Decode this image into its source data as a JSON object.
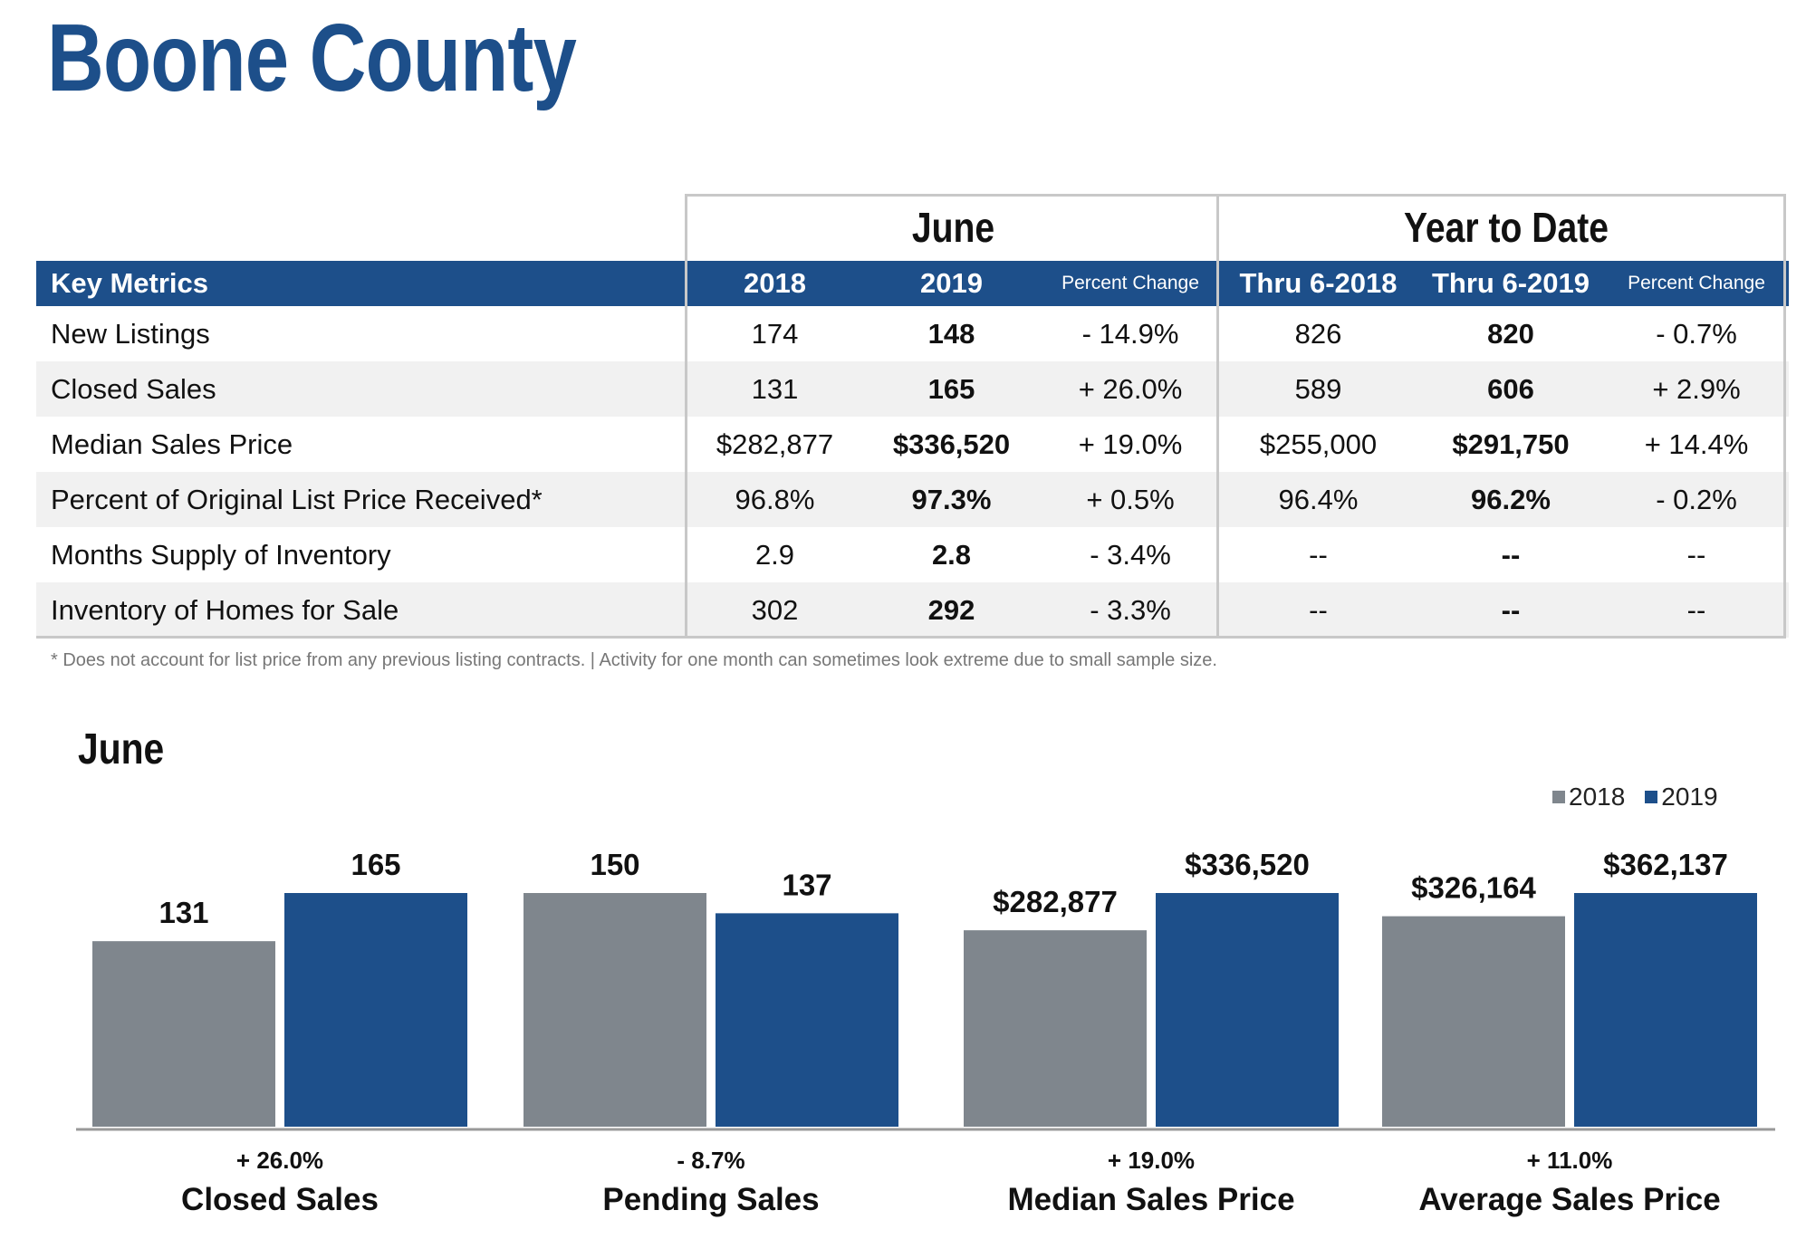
{
  "page_title": "Boone County",
  "table": {
    "group_headers": [
      "June",
      "Year to Date"
    ],
    "columns": [
      "Key Metrics",
      "2018",
      "2019",
      "Percent Change",
      "Thru 6-2018",
      "Thru 6-2019",
      "Percent Change"
    ],
    "rows": [
      [
        "New Listings",
        "174",
        "148",
        "- 14.9%",
        "826",
        "820",
        "- 0.7%"
      ],
      [
        "Closed Sales",
        "131",
        "165",
        "+ 26.0%",
        "589",
        "606",
        "+ 2.9%"
      ],
      [
        "Median Sales Price",
        "$282,877",
        "$336,520",
        "+ 19.0%",
        "$255,000",
        "$291,750",
        "+ 14.4%"
      ],
      [
        "Percent of Original List Price Received*",
        "96.8%",
        "97.3%",
        "+ 0.5%",
        "96.4%",
        "96.2%",
        "- 0.2%"
      ],
      [
        "Months Supply of Inventory",
        "2.9",
        "2.8",
        "- 3.4%",
        "--",
        "--",
        "--"
      ],
      [
        "Inventory of Homes for Sale",
        "302",
        "292",
        "- 3.3%",
        "--",
        "--",
        "--"
      ]
    ],
    "footnote": "* Does not account for list price from any previous listing contracts.  |  Activity for one month can sometimes look extreme due to small sample size."
  },
  "colors": {
    "brand_blue": "#1d4f8a",
    "gray_bar": "#7f868d",
    "alt_row": "#f1f1f1"
  },
  "chart_data": {
    "type": "bar",
    "title": "June",
    "legend_position": "top-right",
    "series_names": [
      "2018",
      "2019"
    ],
    "groups": [
      {
        "label": "Closed Sales",
        "change": "+ 26.0%",
        "values": [
          131,
          165
        ],
        "value_labels": [
          "131",
          "165"
        ]
      },
      {
        "label": "Pending Sales",
        "change": "- 8.7%",
        "values": [
          150,
          137
        ],
        "value_labels": [
          "150",
          "137"
        ]
      },
      {
        "label": "Median Sales Price",
        "change": "+ 19.0%",
        "values": [
          282877,
          336520
        ],
        "value_labels": [
          "$282,877",
          "$336,520"
        ]
      },
      {
        "label": "Average Sales Price",
        "change": "+ 11.0%",
        "values": [
          326164,
          362137
        ],
        "value_labels": [
          "$326,164",
          "$362,137"
        ]
      }
    ]
  }
}
